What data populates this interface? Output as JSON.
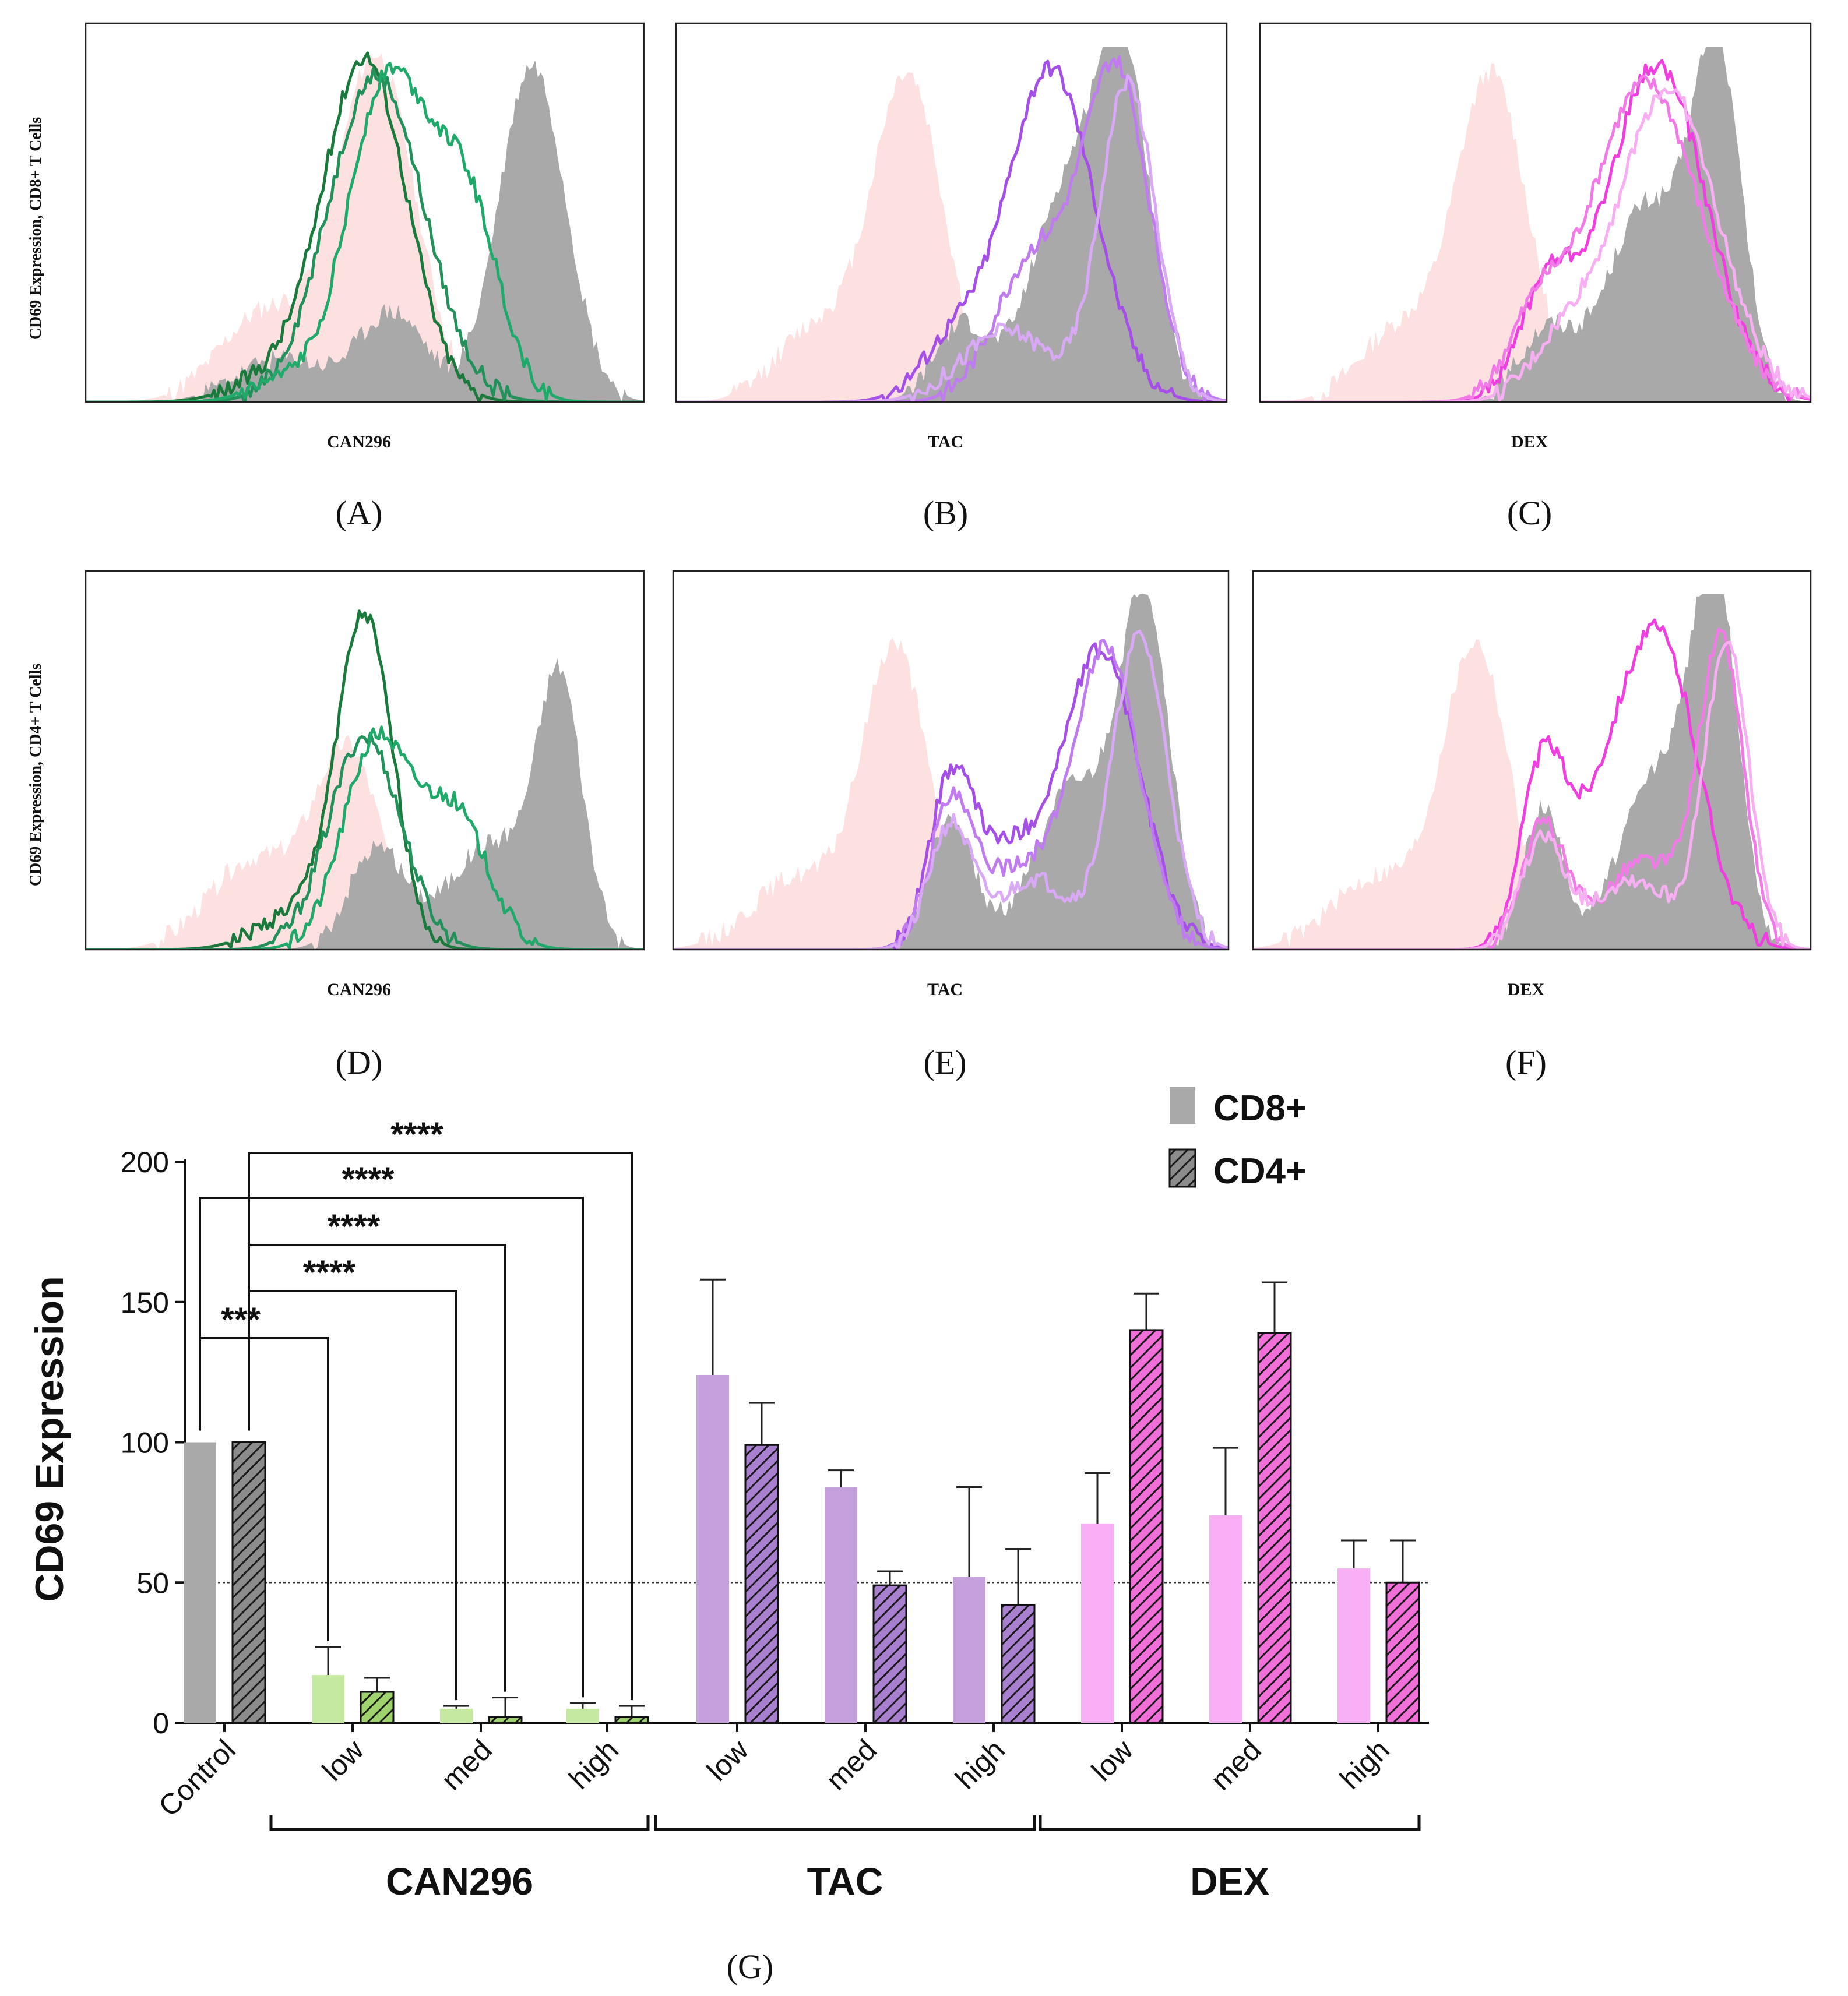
{
  "figure": {
    "histogram_panels": [
      {
        "id": "A",
        "label": "(A)",
        "xlabel": "CAN296",
        "row": "CD8+",
        "treatment": "CAN296",
        "shape": "green_cd8",
        "line_colors": [
          "#1a7a3c",
          "#23915a",
          "#1faa6a"
        ]
      },
      {
        "id": "B",
        "label": "(B)",
        "xlabel": "TAC",
        "row": "CD8+",
        "treatment": "TAC",
        "shape": "purple_cd8",
        "line_colors": [
          "#a64ee8",
          "#c07bf0",
          "#d9a8f6"
        ]
      },
      {
        "id": "C",
        "label": "(C)",
        "xlabel": "DEX",
        "row": "CD8+",
        "treatment": "DEX",
        "shape": "pink_cd8",
        "line_colors": [
          "#f03ee0",
          "#f27ae8",
          "#f7aef2"
        ]
      },
      {
        "id": "D",
        "label": "(D)",
        "xlabel": "CAN296",
        "row": "CD4+",
        "treatment": "CAN296",
        "shape": "green_cd4",
        "line_colors": [
          "#1a7a3c",
          "#23915a",
          "#1faa6a"
        ]
      },
      {
        "id": "E",
        "label": "(E)",
        "xlabel": "TAC",
        "row": "CD4+",
        "treatment": "TAC",
        "shape": "purple_cd4",
        "line_colors": [
          "#a64ee8",
          "#c07bf0",
          "#d9a8f6"
        ]
      },
      {
        "id": "F",
        "label": "(F)",
        "xlabel": "DEX",
        "row": "CD4+",
        "treatment": "DEX",
        "shape": "pink_cd4",
        "line_colors": [
          "#f03ee0",
          "#f27ae8",
          "#f7aef2"
        ]
      }
    ],
    "row_ylabels": {
      "cd8": "CD69 Expression, CD8+ T Cells",
      "cd4": "CD69 Expression, CD4+ T Cells"
    },
    "fill_colors": {
      "negative": "#fde0e0",
      "positive": "#a9a9a9"
    },
    "panel_g_label": "(G)"
  },
  "chart_data": {
    "type": "bar",
    "title": "",
    "ylabel": "CD69 Expression",
    "xlabel": "",
    "ylim": [
      0,
      200
    ],
    "yticks": [
      0,
      50,
      100,
      150,
      200
    ],
    "reference_line": 50,
    "categories": [
      "Control",
      "low",
      "med",
      "high",
      "low",
      "med",
      "high",
      "low",
      "med",
      "high"
    ],
    "group_brackets": [
      {
        "label": "CAN296",
        "from": 1,
        "to": 3
      },
      {
        "label": "TAC",
        "from": 4,
        "to": 6
      },
      {
        "label": "DEX",
        "from": 7,
        "to": 9
      }
    ],
    "series": [
      {
        "name": "CD8+",
        "pattern": "solid",
        "values": [
          100,
          17,
          5,
          5,
          124,
          84,
          52,
          71,
          74,
          55
        ],
        "errors": [
          0,
          10,
          1,
          2,
          34,
          6,
          32,
          18,
          24,
          10
        ]
      },
      {
        "name": "CD4+",
        "pattern": "hatched",
        "values": [
          100,
          11,
          2,
          2,
          99,
          49,
          42,
          140,
          139,
          50
        ],
        "errors": [
          0,
          5,
          7,
          4,
          15,
          5,
          20,
          13,
          18,
          15
        ]
      }
    ],
    "bar_colors": [
      "#a9a9a9",
      "#c5e8a0",
      "#c5e8a0",
      "#c5e8a0",
      "#c4a0dd",
      "#c4a0dd",
      "#c4a0dd",
      "#f7aef2",
      "#f7aef2",
      "#f7aef2"
    ],
    "hatch_colors": [
      "#8c8c8c",
      "#9ed36e",
      "#9ed36e",
      "#9ed36e",
      "#a97fd0",
      "#a97fd0",
      "#a97fd0",
      "#f06fd8",
      "#f06fd8",
      "#f06fd8"
    ],
    "significance": [
      {
        "from_series": 0,
        "to_category": 1,
        "to_series": 0,
        "label": "***"
      },
      {
        "from_series": 1,
        "to_category": 2,
        "to_series": 0,
        "label": "****"
      },
      {
        "from_series": 1,
        "to_category": 2,
        "to_series": 1,
        "label": "****"
      },
      {
        "from_series": 0,
        "to_category": 3,
        "to_series": 0,
        "label": "****"
      },
      {
        "from_series": 1,
        "to_category": 3,
        "to_series": 1,
        "label": "****"
      }
    ],
    "legend": [
      {
        "label": "CD8+",
        "pattern": "solid"
      },
      {
        "label": "CD4+",
        "pattern": "hatched"
      }
    ]
  }
}
